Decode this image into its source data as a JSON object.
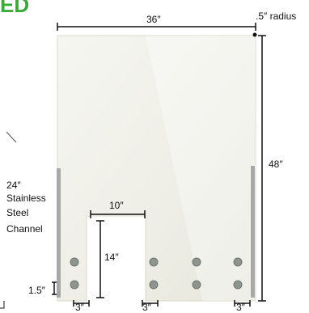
{
  "brand_fragment": "ED",
  "dimensions": {
    "width": "36″",
    "radius": ".5″ radius",
    "height": "48″",
    "channel_length": "24″",
    "channel_desc": [
      "Stainless",
      "Steel",
      "Channel"
    ],
    "cutout_width": "10″",
    "cutout_height": "14″",
    "bolt_spacing": "1.5″",
    "spacing_left": "3″",
    "spacing_mid": "3″",
    "spacing_right": "3″"
  },
  "colors": {
    "panel": "#f1f1ea",
    "panel_edge": "#d9d9cf",
    "steel": "#a8a8a8",
    "bolt": "#8e958f",
    "brand": "#3aa83a"
  }
}
